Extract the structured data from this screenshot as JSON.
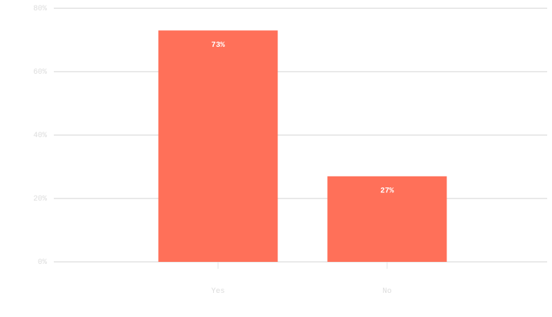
{
  "chart_data": {
    "type": "bar",
    "categories": [
      "Yes",
      "No"
    ],
    "values": [
      73,
      27
    ],
    "value_labels": [
      "73%",
      "27%"
    ],
    "color": "#ff7059",
    "ylim": [
      0,
      80
    ],
    "yticks": [
      {
        "value": 0,
        "label": "0%"
      },
      {
        "value": 20,
        "label": "20%"
      },
      {
        "value": 40,
        "label": "40%"
      },
      {
        "value": 60,
        "label": "60%"
      },
      {
        "value": 80,
        "label": "80%"
      }
    ],
    "grid": true
  }
}
